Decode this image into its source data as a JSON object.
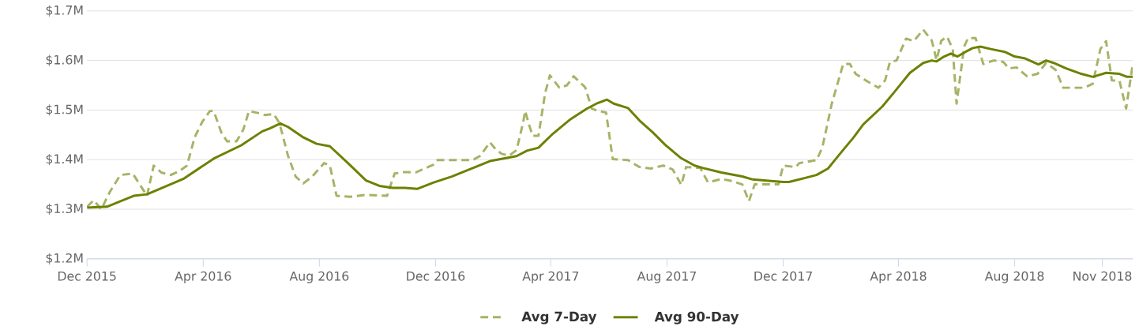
{
  "chart_data": {
    "type": "line",
    "marker": "none",
    "grid": "y",
    "legend": "bottom",
    "xlim": [
      "2015-12-01",
      "2018-12-03"
    ],
    "xticks": [
      {
        "value": "2015-12-01",
        "label": "Dec 2015"
      },
      {
        "value": "2016-04-01",
        "label": "Apr 2016"
      },
      {
        "value": "2016-08-01",
        "label": "Aug 2016"
      },
      {
        "value": "2016-12-01",
        "label": "Dec 2016"
      },
      {
        "value": "2017-04-01",
        "label": "Apr 2017"
      },
      {
        "value": "2017-08-01",
        "label": "Aug 2017"
      },
      {
        "value": "2017-12-01",
        "label": "Dec 2017"
      },
      {
        "value": "2018-04-01",
        "label": "Apr 2018"
      },
      {
        "value": "2018-08-01",
        "label": "Aug 2018"
      },
      {
        "value": "2018-11-01",
        "label": "Nov 2018"
      }
    ],
    "ylim": [
      1200000,
      1700000
    ],
    "yticks": [
      {
        "value": 1200000,
        "label": "$1.2M"
      },
      {
        "value": 1300000,
        "label": "$1.3M"
      },
      {
        "value": 1400000,
        "label": "$1.4M"
      },
      {
        "value": 1500000,
        "label": "$1.5M"
      },
      {
        "value": 1600000,
        "label": "$1.6M"
      },
      {
        "value": 1700000,
        "label": "$1.7M"
      }
    ],
    "series": [
      {
        "name": "Avg 7-Day",
        "line_style": "dashed",
        "color": "#a4b466",
        "x": [
          "2015-12-01",
          "2015-12-08",
          "2015-12-16",
          "2015-12-25",
          "2016-01-05",
          "2016-01-18",
          "2016-02-02",
          "2016-02-09",
          "2016-02-17",
          "2016-02-27",
          "2016-03-07",
          "2016-03-15",
          "2016-03-23",
          "2016-03-31",
          "2016-04-08",
          "2016-04-12",
          "2016-04-20",
          "2016-04-26",
          "2016-05-06",
          "2016-05-13",
          "2016-05-19",
          "2016-05-31",
          "2016-06-05",
          "2016-06-14",
          "2016-06-20",
          "2016-06-29",
          "2016-07-07",
          "2016-07-15",
          "2016-07-24",
          "2016-08-06",
          "2016-08-12",
          "2016-08-19",
          "2016-09-02",
          "2016-09-19",
          "2016-10-11",
          "2016-10-19",
          "2016-10-30",
          "2016-11-10",
          "2016-11-29",
          "2016-12-03",
          "2017-01-09",
          "2017-01-17",
          "2017-01-27",
          "2017-02-02",
          "2017-02-08",
          "2017-02-16",
          "2017-02-24",
          "2017-03-03",
          "2017-03-05",
          "2017-03-09",
          "2017-03-13",
          "2017-03-19",
          "2017-03-26",
          "2017-03-31",
          "2017-04-10",
          "2017-04-18",
          "2017-04-25",
          "2017-05-07",
          "2017-05-14",
          "2017-05-19",
          "2017-05-29",
          "2017-06-05",
          "2017-06-21",
          "2017-07-03",
          "2017-07-15",
          "2017-07-28",
          "2017-08-07",
          "2017-08-16",
          "2017-08-21",
          "2017-09-05",
          "2017-09-13",
          "2017-09-27",
          "2017-10-08",
          "2017-10-19",
          "2017-10-26",
          "2017-11-01",
          "2017-11-26",
          "2017-12-01",
          "2017-12-14",
          "2017-12-18",
          "2018-01-05",
          "2018-01-11",
          "2018-01-21",
          "2018-02-02",
          "2018-02-09",
          "2018-02-15",
          "2018-02-28",
          "2018-03-11",
          "2018-03-18",
          "2018-03-23",
          "2018-03-30",
          "2018-04-09",
          "2018-04-17",
          "2018-04-27",
          "2018-05-06",
          "2018-05-11",
          "2018-05-16",
          "2018-05-22",
          "2018-05-28",
          "2018-06-01",
          "2018-06-09",
          "2018-06-13",
          "2018-06-21",
          "2018-06-29",
          "2018-07-10",
          "2018-07-20",
          "2018-07-26",
          "2018-08-03",
          "2018-08-14",
          "2018-08-25",
          "2018-09-03",
          "2018-09-13",
          "2018-09-21",
          "2018-10-13",
          "2018-10-22",
          "2018-10-30",
          "2018-11-05",
          "2018-11-11",
          "2018-11-19",
          "2018-11-26",
          "2018-12-03"
        ],
        "values": [
          1305000,
          1318000,
          1300000,
          1335000,
          1369000,
          1372000,
          1327000,
          1388000,
          1374000,
          1369000,
          1377000,
          1388000,
          1445000,
          1476000,
          1498000,
          1498000,
          1455000,
          1437000,
          1437000,
          1460000,
          1498000,
          1493000,
          1490000,
          1492000,
          1474000,
          1408000,
          1366000,
          1352000,
          1365000,
          1393000,
          1388000,
          1327000,
          1325000,
          1329000,
          1327000,
          1372000,
          1375000,
          1374000,
          1390000,
          1399000,
          1399000,
          1408000,
          1435000,
          1421000,
          1412000,
          1408000,
          1419000,
          1476000,
          1498000,
          1471000,
          1448000,
          1448000,
          1534000,
          1570000,
          1545000,
          1550000,
          1568000,
          1546000,
          1503000,
          1499000,
          1495000,
          1401000,
          1399000,
          1385000,
          1382000,
          1388000,
          1380000,
          1349000,
          1385000,
          1383000,
          1354000,
          1361000,
          1357000,
          1350000,
          1316000,
          1350000,
          1350000,
          1388000,
          1385000,
          1393000,
          1399000,
          1424000,
          1513000,
          1593000,
          1593000,
          1573000,
          1557000,
          1545000,
          1560000,
          1597000,
          1600000,
          1644000,
          1639000,
          1662000,
          1640000,
          1601000,
          1640000,
          1648000,
          1623000,
          1513000,
          1628000,
          1645000,
          1645000,
          1593000,
          1600000,
          1597000,
          1584000,
          1586000,
          1568000,
          1573000,
          1595000,
          1581000,
          1545000,
          1545000,
          1553000,
          1623000,
          1639000,
          1560000,
          1559000,
          1503000,
          1593000
        ]
      },
      {
        "name": "Avg 90-Day",
        "line_style": "solid",
        "color": "#6b8200",
        "x": [
          "2015-12-01",
          "2015-12-22",
          "2016-01-19",
          "2016-02-02",
          "2016-03-11",
          "2016-04-12",
          "2016-05-11",
          "2016-06-02",
          "2016-06-10",
          "2016-06-21",
          "2016-06-29",
          "2016-07-15",
          "2016-07-29",
          "2016-08-12",
          "2016-08-31",
          "2016-09-19",
          "2016-10-03",
          "2016-10-17",
          "2016-10-30",
          "2016-11-12",
          "2016-11-29",
          "2016-12-18",
          "2017-01-27",
          "2017-02-24",
          "2017-03-07",
          "2017-03-19",
          "2017-04-03",
          "2017-04-22",
          "2017-05-09",
          "2017-05-19",
          "2017-05-30",
          "2017-06-06",
          "2017-06-21",
          "2017-07-03",
          "2017-07-17",
          "2017-07-30",
          "2017-08-15",
          "2017-08-30",
          "2017-09-08",
          "2017-09-27",
          "2017-10-19",
          "2017-10-30",
          "2017-11-18",
          "2017-12-01",
          "2017-12-07",
          "2017-12-24",
          "2018-01-05",
          "2018-01-17",
          "2018-01-28",
          "2018-02-13",
          "2018-02-23",
          "2018-03-15",
          "2018-03-28",
          "2018-04-13",
          "2018-04-27",
          "2018-05-06",
          "2018-05-11",
          "2018-05-19",
          "2018-05-26",
          "2018-06-02",
          "2018-06-10",
          "2018-06-18",
          "2018-06-26",
          "2018-07-07",
          "2018-07-22",
          "2018-08-01",
          "2018-08-12",
          "2018-08-26",
          "2018-09-03",
          "2018-09-11",
          "2018-09-24",
          "2018-10-10",
          "2018-10-22",
          "2018-11-05",
          "2018-11-19",
          "2018-11-27",
          "2018-12-03"
        ],
        "values": [
          1303000,
          1305000,
          1327000,
          1330000,
          1361000,
          1402000,
          1429000,
          1457000,
          1463000,
          1473000,
          1466000,
          1445000,
          1432000,
          1427000,
          1393000,
          1358000,
          1347000,
          1343000,
          1343000,
          1341000,
          1354000,
          1366000,
          1397000,
          1407000,
          1418000,
          1424000,
          1452000,
          1482000,
          1503000,
          1513000,
          1521000,
          1513000,
          1504000,
          1479000,
          1455000,
          1430000,
          1404000,
          1388000,
          1383000,
          1374000,
          1366000,
          1360000,
          1357000,
          1355000,
          1355000,
          1363000,
          1369000,
          1382000,
          1408000,
          1445000,
          1471000,
          1507000,
          1537000,
          1575000,
          1595000,
          1600000,
          1598000,
          1608000,
          1614000,
          1608000,
          1617000,
          1625000,
          1628000,
          1623000,
          1617000,
          1608000,
          1604000,
          1592000,
          1600000,
          1595000,
          1584000,
          1573000,
          1567000,
          1575000,
          1573000,
          1567000,
          1567000
        ]
      }
    ]
  }
}
